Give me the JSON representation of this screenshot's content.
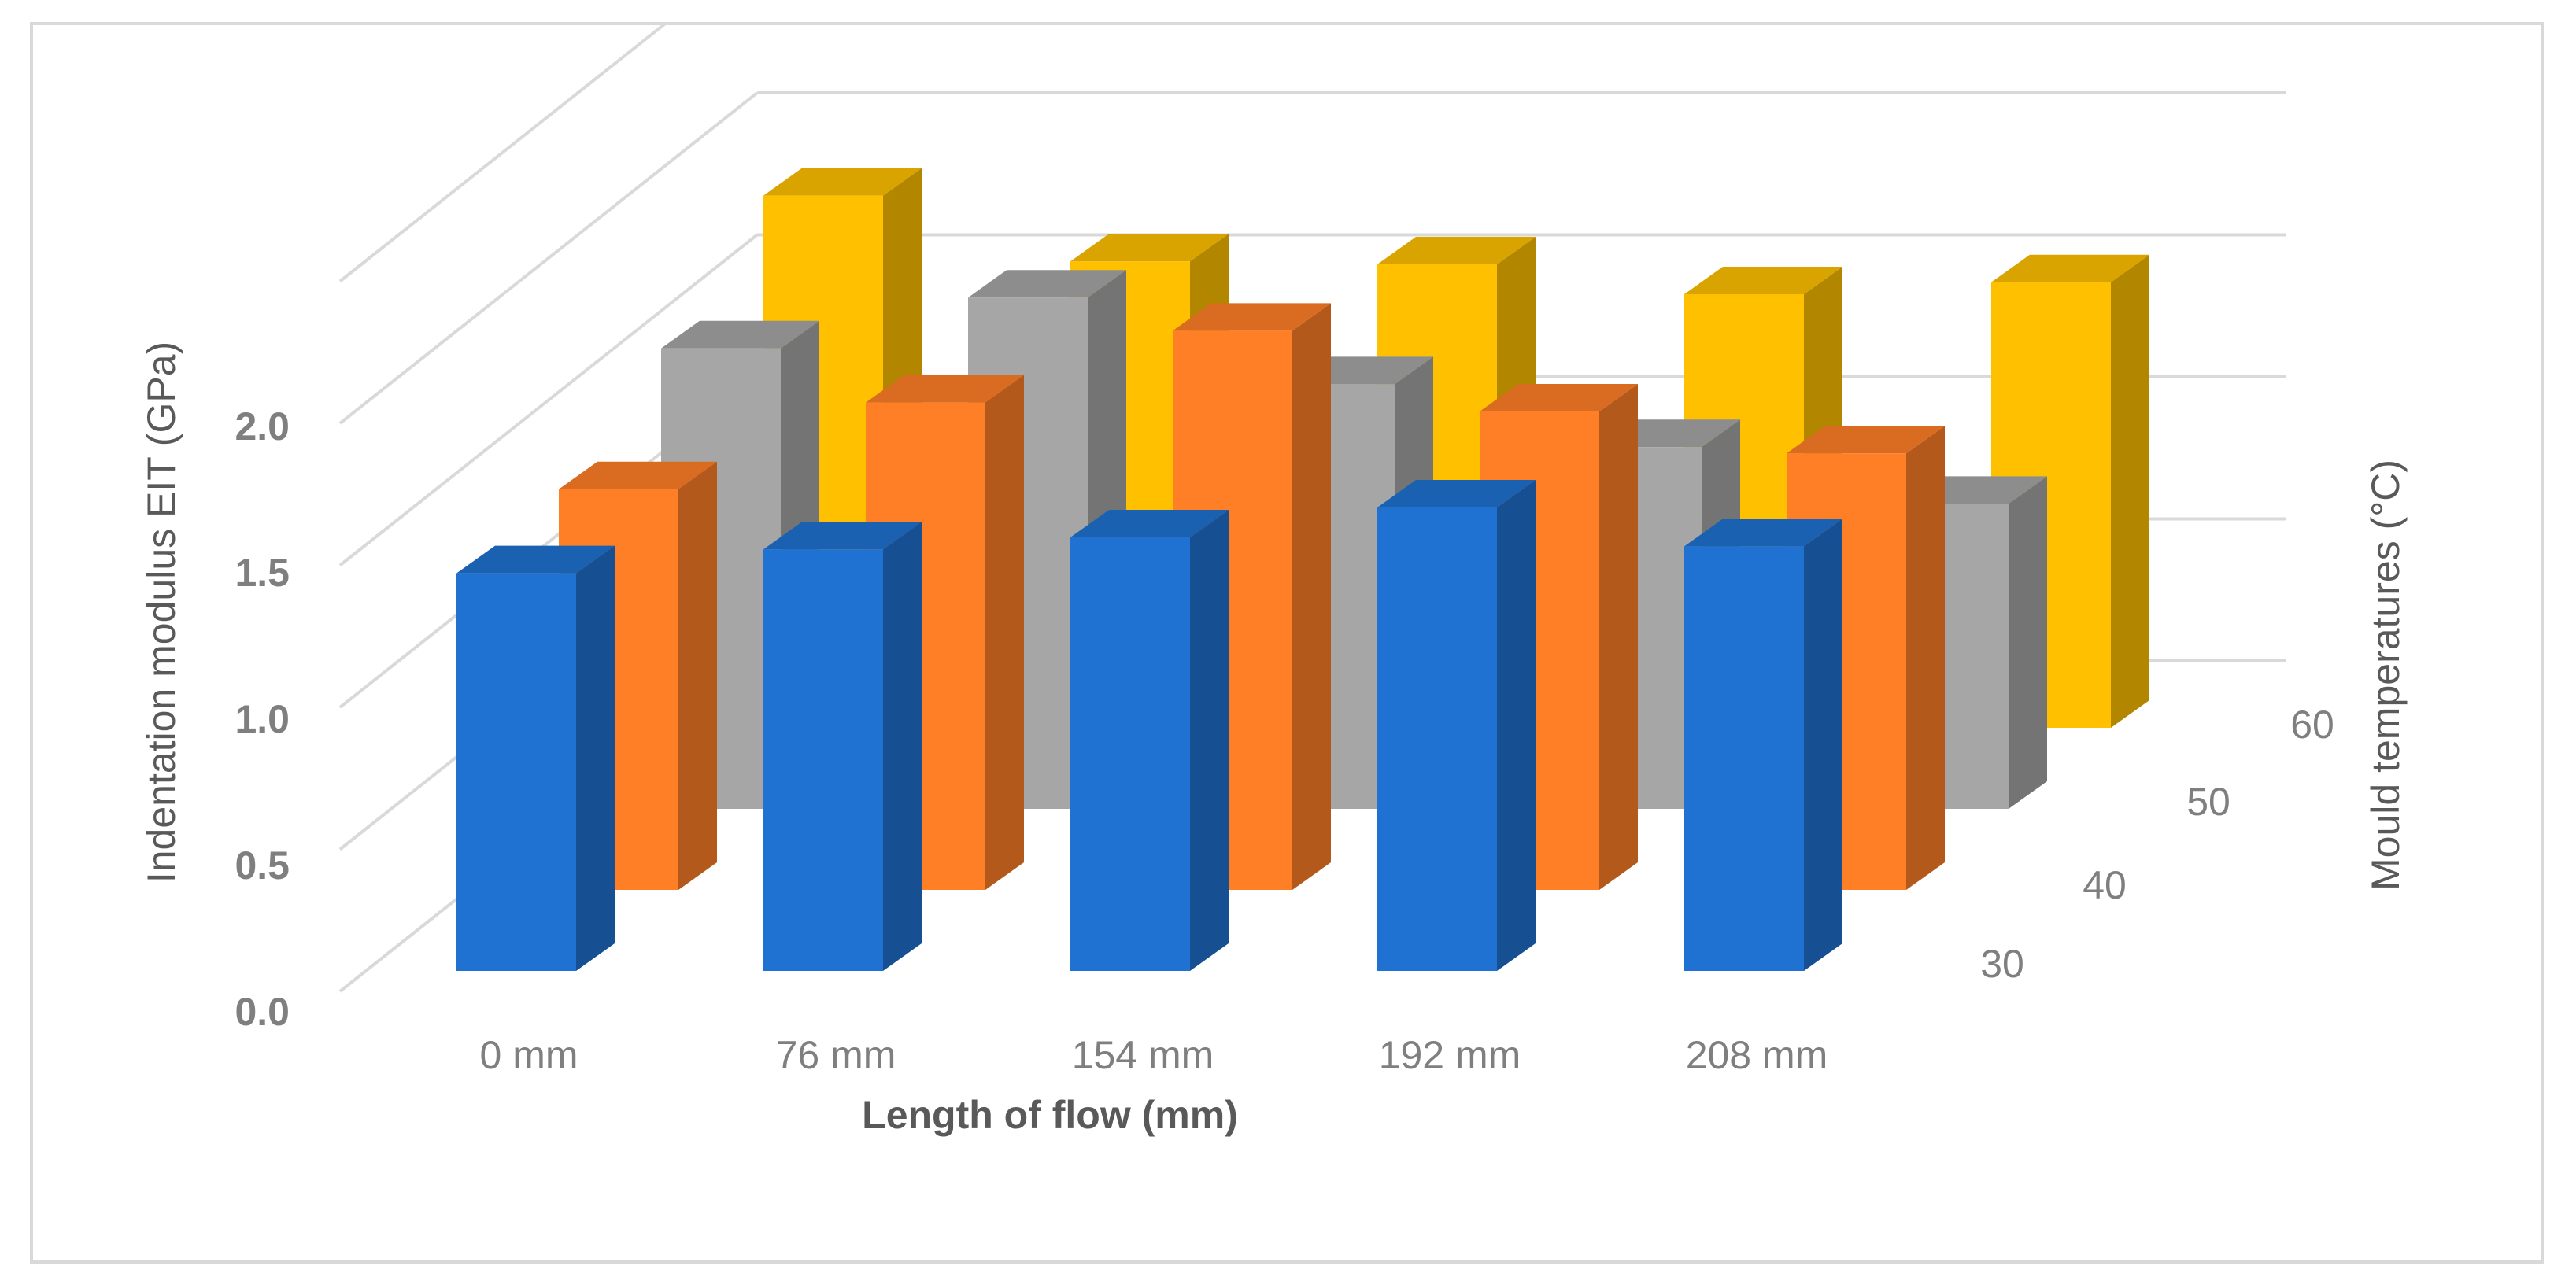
{
  "chart_data": {
    "type": "bar",
    "subtype": "3d-column",
    "title": "",
    "xlabel": "Length of flow (mm)",
    "ylabel": "Indentation modulus EIT (GPa)",
    "zlabel": "Mould temperatures (°C)",
    "categories": [
      "0 mm",
      "76 mm",
      "154 mm",
      "192 mm",
      "208 mm"
    ],
    "y_ticks": [
      "0.0",
      "0.5",
      "1.0",
      "1.5",
      "2.0"
    ],
    "ylim": [
      0,
      2.5
    ],
    "grid": true,
    "legend": "none",
    "series": [
      {
        "label": "30",
        "color": "#1f72d1",
        "values": [
          1.33,
          1.41,
          1.45,
          1.55,
          1.42
        ]
      },
      {
        "label": "40",
        "color": "#ff7f27",
        "values": [
          1.34,
          1.63,
          1.87,
          1.6,
          1.46
        ]
      },
      {
        "label": "50",
        "color": "#a6a6a6",
        "values": [
          1.54,
          1.71,
          1.42,
          1.21,
          1.02
        ]
      },
      {
        "label": "60",
        "color": "#ffc000",
        "values": [
          1.78,
          1.56,
          1.55,
          1.45,
          1.49
        ]
      }
    ]
  }
}
